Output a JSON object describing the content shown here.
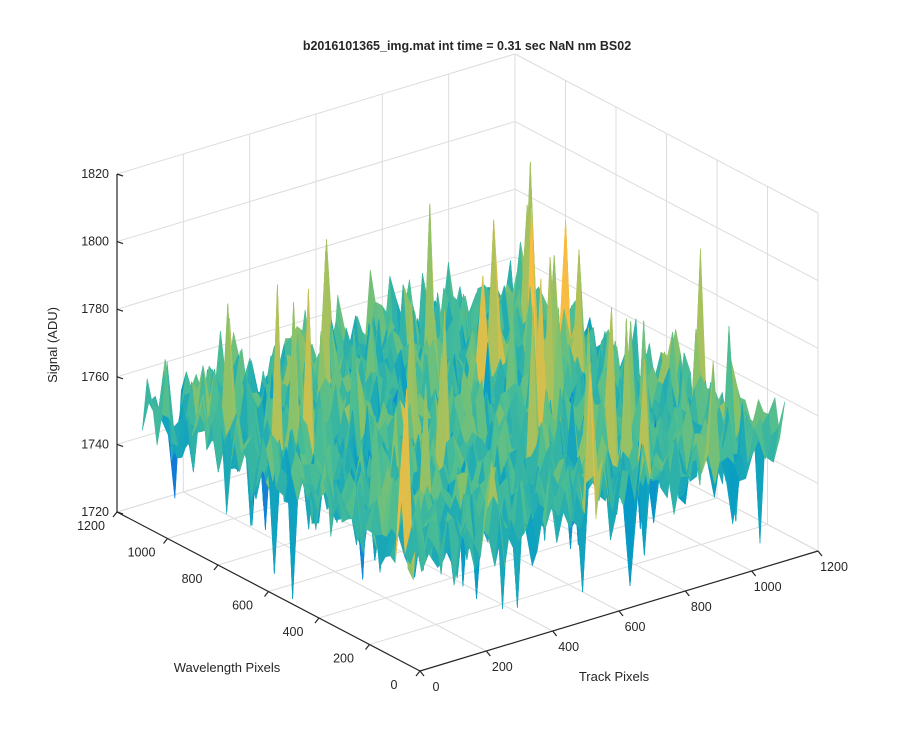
{
  "chart_data": {
    "type": "surface",
    "title": "b2016101365_img.mat int time = 0.31 sec  NaN nm BS02",
    "xlabel": "Track Pixels",
    "ylabel": "Wavelength Pixels",
    "zlabel": "Signal (ADU)",
    "xlim": [
      0,
      1200
    ],
    "ylim": [
      0,
      1200
    ],
    "zlim": [
      1720,
      1820
    ],
    "xticks": [
      "0",
      "200",
      "400",
      "600",
      "800",
      "1000",
      "1200"
    ],
    "yticks": [
      "0",
      "200",
      "400",
      "600",
      "800",
      "1000",
      "1200"
    ],
    "zticks": [
      "1720",
      "1740",
      "1760",
      "1780",
      "1800",
      "1820"
    ],
    "grid": true,
    "colormap": "parula",
    "surface_extent": {
      "x": [
        0,
        1100
      ],
      "y": [
        0,
        1100
      ]
    },
    "signal_range": {
      "typical_min": 1740,
      "typical_max": 1780,
      "peak_max": 1806,
      "trough_min": 1718,
      "mean": 1755
    }
  }
}
